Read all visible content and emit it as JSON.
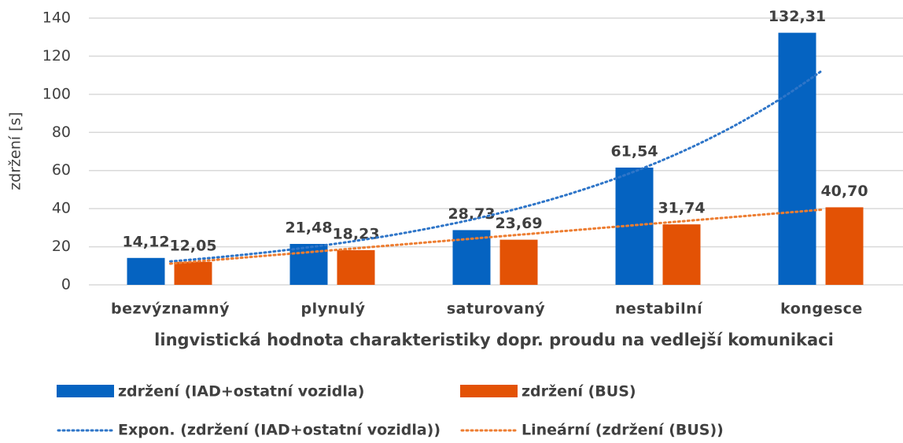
{
  "chart_data": {
    "type": "bar",
    "x_label": "lingvistická hodnota charakteristiky dopr. proudu na vedlejší komunikaci",
    "y_label": "zdržení [s]",
    "categories": [
      "bezvýznamný",
      "plynulý",
      "saturovaný",
      "nestabilní",
      "kongesce"
    ],
    "series": [
      {
        "name": "zdržení (IAD+ostatní vozidla)",
        "color": "#0563c1",
        "values": [
          14.12,
          21.48,
          28.73,
          61.54,
          132.31
        ],
        "value_labels": [
          "14,12",
          "21,48",
          "28,73",
          "61,54",
          "132,31"
        ],
        "trendline": {
          "name": "Expon. (zdržení (IAD+ostatní vozidla))",
          "type": "exponential",
          "color": "#2e75c8"
        }
      },
      {
        "name": "zdržení (BUS)",
        "color": "#e35205",
        "values": [
          12.05,
          18.23,
          23.69,
          31.74,
          40.7
        ],
        "value_labels": [
          "12,05",
          "18,23",
          "23,69",
          "31,74",
          "40,70"
        ],
        "trendline": {
          "name": "Lineární (zdržení (BUS))",
          "type": "linear",
          "color": "#ed7d31"
        }
      }
    ],
    "ylim": [
      0,
      140
    ],
    "yticks": [
      0,
      20,
      40,
      60,
      80,
      100,
      120,
      140
    ],
    "grid": true,
    "legend": "bottom"
  }
}
